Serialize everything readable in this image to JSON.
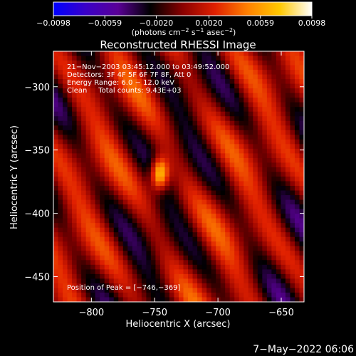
{
  "chart_data": {
    "type": "heatmap",
    "title": "Reconstructed RHESSI Image",
    "xlabel": "Heliocentric X (arcsec)",
    "ylabel": "Heliocentric Y (arcsec)",
    "xlim": [
      -830,
      -632
    ],
    "ylim": [
      -470,
      -272
    ],
    "xticks": [
      -800,
      -750,
      -700,
      -650
    ],
    "yticks": [
      -300,
      -350,
      -400,
      -450
    ],
    "xtick_labels": [
      "−800",
      "−750",
      "−700",
      "−650"
    ],
    "ytick_labels": [
      "−300",
      "−350",
      "−400",
      "−450"
    ],
    "colorbar": {
      "range": [
        -0.0098,
        0.0098
      ],
      "tick_labels": [
        "−0.0098",
        "−0.0059",
        "−0.0020",
        "0.0020",
        "0.0059",
        "0.0098"
      ],
      "unit_prefix": "(photons cm",
      "unit_exp1": "−2",
      "unit_mid": " s",
      "unit_exp2": "−1",
      "unit_mid2": " asec",
      "unit_exp3": "−2",
      "unit_suffix": ")",
      "colormap": [
        "#0000ff",
        "#3a00c8",
        "#5a0096",
        "#000000",
        "#8a0000",
        "#e02000",
        "#ff8000",
        "#ffc800",
        "#ffffff"
      ]
    },
    "annotations": [
      "21−Nov−2003 03:45:12.000 to 03:49:52.000",
      "Detectors: 3F 4F 5F 6F 7F 8F, Att 0",
      "Energy Range: 6.0 − 12.0 keV",
      "Clean     Total counts: 9.43E+03",
      "Position of Peak = [−746,−369]"
    ],
    "peak": {
      "x": -746,
      "y": -369,
      "value": 0.0098
    },
    "source_shape": {
      "sigma_x": 5,
      "sigma_y": 9,
      "background_stripes": "diagonal positive/negative artifacts"
    }
  },
  "footer": {
    "date": "7−May−2022 06:06"
  }
}
